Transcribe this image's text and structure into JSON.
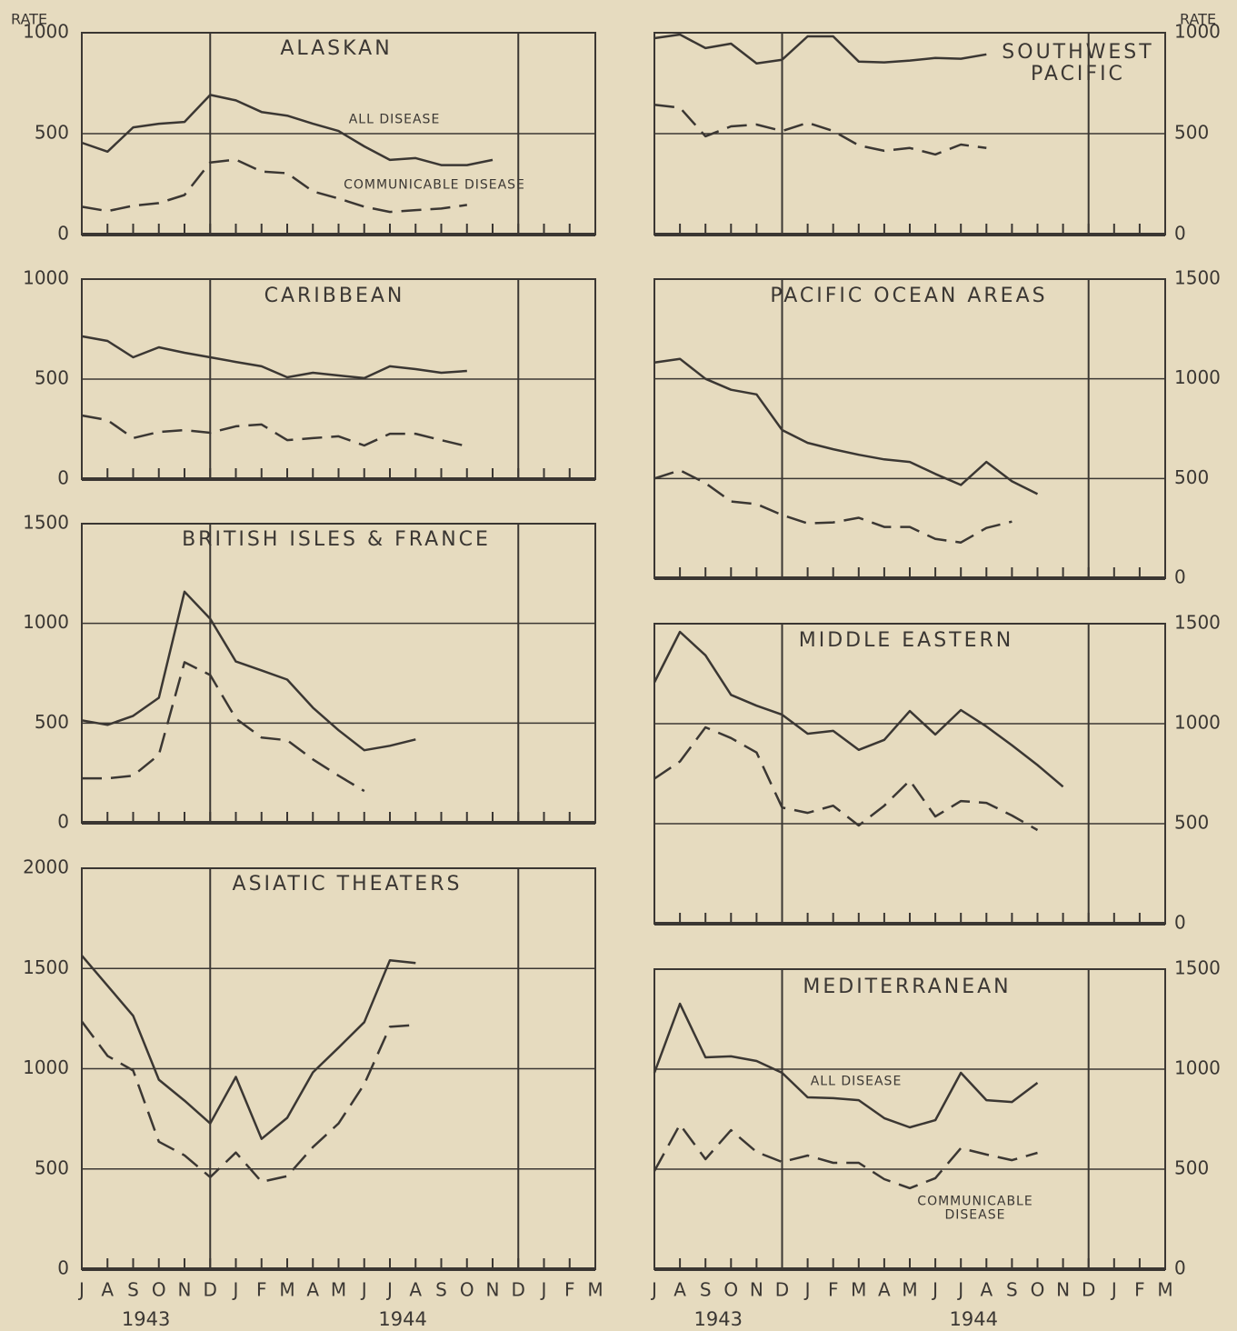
{
  "axis_label": "RATE",
  "months": [
    "J",
    "A",
    "S",
    "O",
    "N",
    "D",
    "J",
    "F",
    "M",
    "A",
    "M",
    "J",
    "J",
    "A",
    "S",
    "O",
    "N",
    "D",
    "J",
    "F",
    "M"
  ],
  "years": [
    "1943",
    "1944"
  ],
  "chart_data": [
    {
      "type": "line",
      "title": "ALASKAN",
      "ylim": [
        0,
        1000
      ],
      "yticks": [
        0,
        500,
        1000
      ],
      "grid": true,
      "series": [
        {
          "name": "ALL DISEASE",
          "color": "#3b3733",
          "line_style": "solid",
          "values": [
            455,
            411,
            531,
            549,
            558,
            692,
            665,
            607,
            589,
            549,
            513,
            437,
            370,
            379,
            344,
            344,
            370,
            null,
            null,
            null,
            null
          ]
        },
        {
          "name": "COMMUNICABLE DISEASE",
          "color": "#3b3733",
          "line_style": "dashed",
          "values": [
            138,
            116,
            143,
            156,
            196,
            357,
            371,
            312,
            304,
            214,
            179,
            138,
            112,
            121,
            129,
            147,
            null,
            null,
            null,
            null,
            null
          ]
        }
      ]
    },
    {
      "type": "line",
      "title": "CARIBBEAN",
      "ylim": [
        0,
        1000
      ],
      "yticks": [
        0,
        500,
        1000
      ],
      "grid": true,
      "series": [
        {
          "color": "#3b3733",
          "line_style": "solid",
          "values": [
            714,
            691,
            609,
            659,
            632,
            609,
            586,
            564,
            509,
            532,
            518,
            505,
            564,
            550,
            532,
            541,
            null,
            null,
            null,
            null,
            null
          ]
        },
        {
          "color": "#3b3733",
          "line_style": "dashed",
          "values": [
            318,
            295,
            205,
            236,
            245,
            232,
            264,
            273,
            195,
            205,
            214,
            168,
            227,
            227,
            195,
            164,
            null,
            null,
            null,
            null,
            null
          ]
        }
      ]
    },
    {
      "type": "line",
      "title": "BRITISH ISLES & FRANCE",
      "ylim": [
        0,
        1500
      ],
      "yticks": [
        0,
        500,
        1000,
        1500
      ],
      "grid": true,
      "series": [
        {
          "color": "#3b3733",
          "line_style": "solid",
          "values": [
            514,
            491,
            536,
            627,
            1159,
            1023,
            809,
            764,
            718,
            577,
            464,
            364,
            386,
            418,
            null,
            null,
            null,
            null,
            null,
            null,
            null
          ]
        },
        {
          "color": "#3b3733",
          "line_style": "dashed",
          "values": [
            223,
            223,
            236,
            341,
            805,
            741,
            523,
            427,
            414,
            318,
            236,
            159,
            null,
            null,
            null,
            null,
            null,
            null,
            null,
            null,
            null
          ]
        }
      ]
    },
    {
      "type": "line",
      "title": "ASIATIC THEATERS",
      "ylim": [
        0,
        2000
      ],
      "yticks": [
        0,
        500,
        1000,
        1500,
        2000
      ],
      "grid": true,
      "series": [
        {
          "color": "#3b3733",
          "line_style": "solid",
          "values": [
            1564,
            1414,
            1264,
            945,
            841,
            727,
            959,
            650,
            755,
            982,
            1105,
            1232,
            1541,
            1527,
            null,
            null,
            null,
            null,
            null,
            null,
            null
          ]
        },
        {
          "color": "#3b3733",
          "line_style": "dashed",
          "values": [
            1236,
            1064,
            991,
            636,
            568,
            459,
            582,
            436,
            464,
            609,
            727,
            923,
            1209,
            1218,
            null,
            null,
            null,
            null,
            null,
            null,
            null
          ]
        }
      ]
    },
    {
      "type": "line",
      "title": "SOUTHWEST PACIFIC",
      "ylim": [
        0,
        1000
      ],
      "yticks": [
        0,
        500,
        1000
      ],
      "grid": true,
      "series": [
        {
          "color": "#3b3733",
          "line_style": "solid",
          "values": [
            973,
            991,
            924,
            946,
            848,
            866,
            982,
            982,
            857,
            853,
            862,
            875,
            871,
            893,
            null,
            null,
            null,
            null,
            null,
            null,
            null
          ]
        },
        {
          "color": "#3b3733",
          "line_style": "dashed",
          "values": [
            643,
            629,
            487,
            536,
            545,
            513,
            554,
            513,
            442,
            415,
            429,
            397,
            446,
            429,
            null,
            null,
            null,
            null,
            null,
            null,
            null
          ]
        }
      ]
    },
    {
      "type": "line",
      "title": "PACIFIC OCEAN AREAS",
      "ylim": [
        0,
        1500
      ],
      "yticks": [
        0,
        500,
        1000,
        1500
      ],
      "grid": true,
      "series": [
        {
          "color": "#3b3733",
          "line_style": "solid",
          "values": [
            1082,
            1100,
            1000,
            945,
            922,
            743,
            679,
            647,
            619,
            596,
            583,
            523,
            468,
            583,
            486,
            422,
            null,
            null,
            null,
            null,
            null
          ]
        },
        {
          "color": "#3b3733",
          "line_style": "dashed",
          "values": [
            500,
            541,
            477,
            385,
            372,
            317,
            275,
            280,
            303,
            257,
            257,
            197,
            179,
            252,
            284,
            null,
            null,
            null,
            null,
            null,
            null
          ]
        }
      ]
    },
    {
      "type": "line",
      "title": "MIDDLE EASTERN",
      "ylim": [
        0,
        1500
      ],
      "yticks": [
        0,
        500,
        1000,
        1500
      ],
      "grid": true,
      "series": [
        {
          "color": "#3b3733",
          "line_style": "solid",
          "values": [
            1207,
            1459,
            1342,
            1144,
            1090,
            1045,
            950,
            964,
            869,
            919,
            1063,
            946,
            1068,
            986,
            892,
            793,
            685,
            null,
            null,
            null,
            null
          ]
        },
        {
          "color": "#3b3733",
          "line_style": "dashed",
          "values": [
            725,
            811,
            982,
            928,
            856,
            581,
            554,
            590,
            491,
            590,
            716,
            536,
            613,
            604,
            541,
            468,
            null,
            null,
            null,
            null,
            null
          ]
        }
      ]
    },
    {
      "type": "line",
      "title": "MEDITERRANEAN",
      "ylim": [
        0,
        1500
      ],
      "yticks": [
        0,
        500,
        1000,
        1500
      ],
      "grid": true,
      "series": [
        {
          "name": "ALL DISEASE",
          "color": "#3b3733",
          "line_style": "solid",
          "values": [
            982,
            1327,
            1059,
            1064,
            1041,
            982,
            859,
            855,
            845,
            755,
            709,
            745,
            982,
            845,
            836,
            932,
            null,
            null,
            null,
            null,
            null
          ]
        },
        {
          "name": "COMMUNICABLE DISEASE",
          "color": "#3b3733",
          "line_style": "dashed",
          "values": [
            491,
            723,
            550,
            695,
            586,
            536,
            568,
            532,
            532,
            450,
            405,
            455,
            605,
            573,
            545,
            582,
            null,
            null,
            null,
            null,
            null
          ]
        }
      ]
    }
  ]
}
